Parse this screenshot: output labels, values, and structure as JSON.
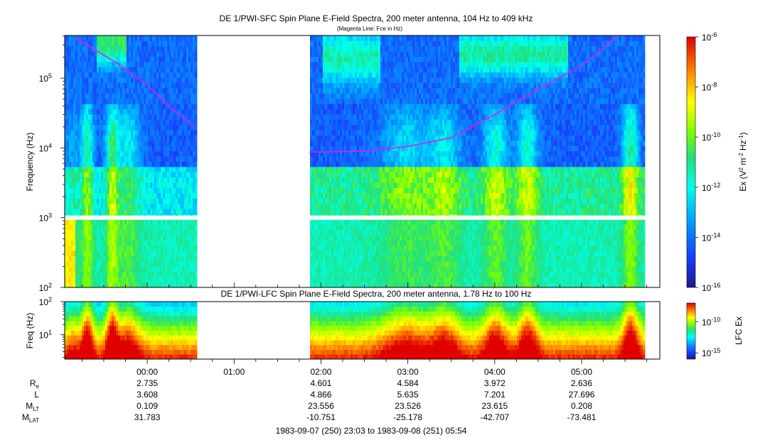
{
  "chart_data": [
    {
      "type": "heatmap",
      "title": "DE 1/PWI-SFC  Spin Plane E-Field Spectra, 200 meter antenna, 104 Hz to 409 kHz",
      "subtitle": "(Magenta Line: Fce in Hz)",
      "ylabel": "Frequency (Hz)",
      "yscale": "log",
      "ylim": [
        100,
        409000
      ],
      "yticks": [
        {
          "mant": "10",
          "exp": "2"
        },
        {
          "mant": "10",
          "exp": "3"
        },
        {
          "mant": "10",
          "exp": "4"
        },
        {
          "mant": "10",
          "exp": "5"
        }
      ],
      "colorbar": {
        "label_base": "Ex (V",
        "label_sup1": "2",
        "label_mid": " m",
        "label_sup2": "-2",
        "label_mid2": " Hz",
        "label_sup3": "-1",
        "label_end": ")",
        "scale": "log",
        "range": [
          1e-16,
          1e-06
        ],
        "ticks": [
          {
            "mant": "10",
            "exp": "-6"
          },
          {
            "mant": "10",
            "exp": "-8"
          },
          {
            "mant": "10",
            "exp": "-10"
          },
          {
            "mant": "10",
            "exp": "-12"
          },
          {
            "mant": "10",
            "exp": "-14"
          },
          {
            "mant": "10",
            "exp": "-16"
          }
        ]
      },
      "data_gap": [
        "00:34",
        "01:52"
      ],
      "fce_line": {
        "color": "#e020e0",
        "segments": [
          {
            "t": [
              "23:10",
              "23:40",
              "00:00",
              "00:15",
              "00:32"
            ],
            "f": [
              380000,
              160000,
              80000,
              40000,
              20000
            ]
          },
          {
            "t": [
              "01:52",
              "02:30",
              "03:00",
              "03:30",
              "04:00",
              "04:30",
              "05:00",
              "05:25"
            ],
            "f": [
              8700,
              9000,
              10500,
              14000,
              30000,
              70000,
              150000,
              400000
            ]
          }
        ]
      }
    },
    {
      "type": "heatmap",
      "title": "DE 1/PWI-LFC  Spin Plane E-Field Spectra, 200 meter antenna, 1.78 Hz to 100 Hz",
      "ylabel": "Freq (Hz)",
      "yscale": "log",
      "ylim": [
        1.78,
        100
      ],
      "yticks": [
        {
          "mant": "10",
          "exp": "1"
        },
        {
          "mant": "10",
          "exp": "2"
        }
      ],
      "colorbar": {
        "label": "LFC Ex",
        "scale": "log",
        "range": [
          1e-16,
          1e-07
        ],
        "ticks": [
          {
            "mant": "10",
            "exp": "-10"
          },
          {
            "mant": "10",
            "exp": "-15"
          }
        ]
      },
      "data_gap": [
        "00:34",
        "01:52"
      ]
    }
  ],
  "time_axis": {
    "ticks": [
      "00:00",
      "01:00",
      "02:00",
      "03:00",
      "04:00",
      "05:00"
    ],
    "range": "1983-09-07 (250) 23:03 to 1983-09-08 (251) 05:54"
  },
  "orbit_table": {
    "rows": [
      {
        "name": "R",
        "sub": "e",
        "values": [
          "2.735",
          "",
          "4.601",
          "4.584",
          "3.972",
          "2.636"
        ]
      },
      {
        "name": "L",
        "sub": "",
        "values": [
          "3.608",
          "",
          "4.866",
          "5.635",
          "7.201",
          "27.696"
        ]
      },
      {
        "name": "M",
        "sub": "LT",
        "values": [
          "0.109",
          "",
          "23.556",
          "23.526",
          "23.615",
          "0.208"
        ]
      },
      {
        "name": "M",
        "sub": "LAT",
        "values": [
          "31.783",
          "",
          "-10.751",
          "-25.178",
          "-42.707",
          "-73.481"
        ]
      }
    ]
  },
  "footer": "1983-09-07 (250) 23:03 to 1983-09-08 (251) 05:54"
}
